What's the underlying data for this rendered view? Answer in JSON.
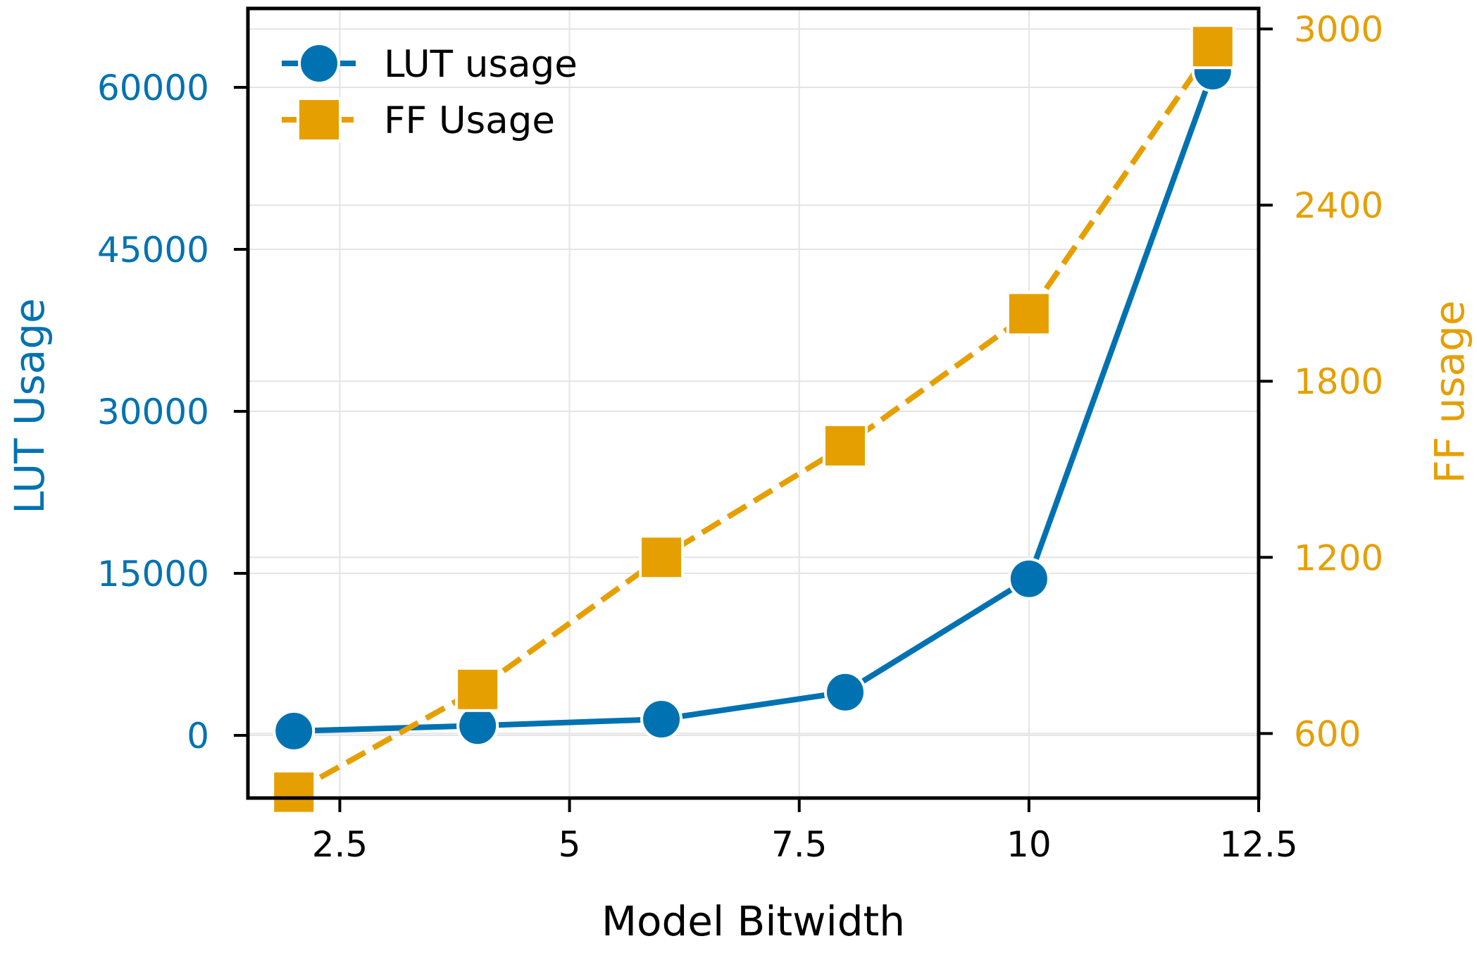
{
  "chart_data": {
    "type": "line",
    "x": [
      2,
      4,
      6,
      8,
      10,
      12
    ],
    "series": [
      {
        "name": "LUT usage",
        "axis": "left",
        "values": [
          400,
          900,
          1500,
          4000,
          14500,
          61500
        ],
        "color": "#0072B2",
        "line_style": "solid",
        "marker": "circle"
      },
      {
        "name": "FF Usage",
        "axis": "right",
        "values": [
          400,
          750,
          1200,
          1580,
          2030,
          2940
        ],
        "color": "#E69F00",
        "line_style": "dashed",
        "marker": "square"
      }
    ],
    "xlabel": "Model Bitwidth",
    "ylabel": "LUT Usage",
    "y2label": "FF usage",
    "xlim": [
      1.5,
      12.5
    ],
    "ylim": [
      -5800,
      67300
    ],
    "y2lim": [
      380,
      3070
    ],
    "x_ticks": [
      "2.5",
      "5",
      "7.5",
      "10",
      "12.5"
    ],
    "x_tick_values": [
      2.5,
      5,
      7.5,
      10,
      12.5
    ],
    "y_ticks": [
      "0",
      "15000",
      "30000",
      "45000",
      "60000"
    ],
    "y_tick_values": [
      0,
      15000,
      30000,
      45000,
      60000
    ],
    "y2_ticks": [
      "600",
      "1200",
      "1800",
      "2400",
      "3000"
    ],
    "y2_tick_values": [
      600,
      1200,
      1800,
      2400,
      3000
    ],
    "grid": true,
    "legend_position": "top-left"
  }
}
